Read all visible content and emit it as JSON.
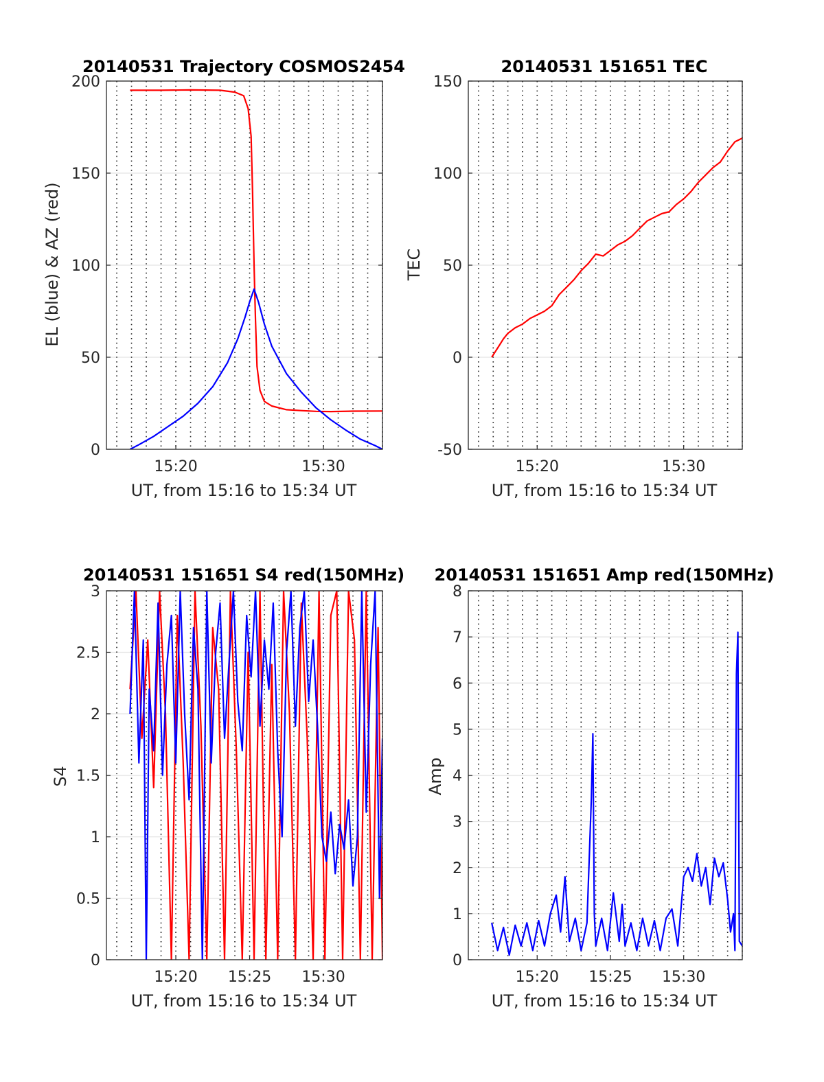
{
  "chart_data": [
    {
      "id": "trajectory",
      "type": "line",
      "title": "20140531 Trajectory COSMOS2454",
      "xlabel": "UT, from 15:16 to 15:34 UT",
      "ylabel": "EL (blue) & AZ (red)",
      "xlim": [
        15.3,
        34.0
      ],
      "ylim": [
        0,
        200
      ],
      "xticks": [
        20,
        30
      ],
      "xtick_labels": [
        "15:20",
        "15:30"
      ],
      "yticks": [
        0,
        50,
        100,
        150,
        200
      ],
      "ytick_labels": [
        "0",
        "50",
        "100",
        "150",
        "200"
      ],
      "grid": "horizontal solid, vertical dotted every minute",
      "series": [
        {
          "color": "#ff0000",
          "x": [
            16.9,
            19.0,
            21.0,
            23.0,
            24.0,
            24.6,
            24.9,
            25.1,
            25.2,
            25.3,
            25.4,
            25.5,
            25.7,
            26.0,
            26.5,
            27.5,
            28.5,
            29.5,
            30.5,
            32.0,
            34.0
          ],
          "y": [
            195,
            195,
            195.2,
            195,
            194,
            192,
            185,
            170,
            140,
            100,
            70,
            45,
            32,
            26,
            23.5,
            21.5,
            21,
            20.6,
            20.5,
            20.7,
            20.8
          ]
        },
        {
          "color": "#0000ff",
          "x": [
            16.9,
            17.5,
            18.5,
            19.5,
            20.5,
            21.5,
            22.5,
            23.5,
            24.2,
            24.7,
            25.0,
            25.3,
            25.6,
            26.0,
            26.5,
            27.5,
            28.5,
            29.5,
            30.5,
            31.5,
            32.5,
            33.5,
            34.0
          ],
          "y": [
            0,
            2.5,
            7,
            12.5,
            18,
            25,
            34,
            47,
            60,
            72,
            80,
            87,
            80,
            68,
            56,
            41,
            31,
            22.5,
            16,
            10.5,
            5.5,
            2,
            0
          ]
        }
      ]
    },
    {
      "id": "tec",
      "type": "line",
      "title": "20140531 151651 TEC",
      "xlabel": "UT, from 15:16 to 15:34 UT",
      "ylabel": "TEC",
      "xlim": [
        15.3,
        34.0
      ],
      "ylim": [
        -50,
        150
      ],
      "xticks": [
        20,
        30
      ],
      "xtick_labels": [
        "15:20",
        "15:30"
      ],
      "yticks": [
        -50,
        0,
        50,
        100,
        150
      ],
      "ytick_labels": [
        "-50",
        "0",
        "50",
        "100",
        "150"
      ],
      "grid": "horizontal solid, vertical dotted every minute",
      "series": [
        {
          "color": "#ff0000",
          "x": [
            16.9,
            17.3,
            17.7,
            18.0,
            18.5,
            19.0,
            19.5,
            20.0,
            20.5,
            21.0,
            21.5,
            22.0,
            22.5,
            23.0,
            23.5,
            24.0,
            24.5,
            25.0,
            25.5,
            26.0,
            26.5,
            27.0,
            27.5,
            28.0,
            28.5,
            29.0,
            29.5,
            30.0,
            30.5,
            31.0,
            31.5,
            32.0,
            32.5,
            33.0,
            33.5,
            34.0
          ],
          "y": [
            0,
            5,
            10,
            13,
            16,
            18,
            21,
            23,
            25,
            28,
            34,
            38,
            42,
            47,
            51,
            56,
            55,
            58,
            61,
            63,
            66,
            70,
            74,
            76,
            78,
            79,
            83,
            86,
            90,
            95,
            99,
            103,
            106,
            112,
            117,
            119
          ]
        }
      ]
    },
    {
      "id": "s4",
      "type": "line",
      "title": "20140531 151651 S4 red(150MHz)",
      "xlabel": "UT, from 15:16 to 15:34 UT",
      "ylabel": "S4",
      "xlim": [
        15.3,
        34.0
      ],
      "ylim": [
        0,
        3
      ],
      "xticks": [
        20,
        25,
        30
      ],
      "xtick_labels": [
        "15:20",
        "15:25",
        "15:30"
      ],
      "yticks": [
        0,
        0.5,
        1,
        1.5,
        2,
        2.5,
        3
      ],
      "ytick_labels": [
        "0",
        "0.5",
        "1",
        "1.5",
        "2",
        "2.5",
        "3"
      ],
      "grid": "horizontal solid, vertical dotted every minute",
      "series": [
        {
          "color": "#ff0000",
          "x": [
            16.9,
            17.3,
            17.7,
            18.1,
            18.5,
            18.9,
            19.3,
            19.7,
            20.1,
            20.5,
            20.9,
            21.3,
            21.7,
            22.1,
            22.5,
            22.9,
            23.3,
            23.7,
            24.1,
            24.5,
            24.9,
            25.3,
            25.7,
            26.1,
            26.5,
            26.9,
            27.3,
            27.7,
            28.1,
            28.5,
            28.9,
            29.3,
            29.7,
            30.1,
            30.5,
            30.9,
            31.3,
            31.7,
            32.1,
            32.5,
            32.9,
            33.3,
            33.7,
            34.0
          ],
          "y": [
            2.2,
            3.0,
            1.8,
            2.6,
            1.4,
            3.0,
            2.0,
            0.0,
            2.8,
            1.6,
            0.0,
            3.0,
            1.9,
            0.0,
            2.7,
            2.2,
            0.0,
            3.0,
            1.7,
            0.0,
            2.5,
            0.0,
            3.0,
            0.0,
            2.4,
            0.0,
            3.0,
            2.0,
            0.0,
            2.9,
            1.8,
            0.0,
            3.0,
            0.0,
            2.8,
            3.0,
            0.0,
            3.0,
            2.6,
            0.0,
            3.0,
            0.0,
            2.7,
            0.0
          ]
        },
        {
          "color": "#0000ff",
          "x": [
            16.9,
            17.2,
            17.5,
            17.8,
            18.0,
            18.2,
            18.5,
            18.8,
            19.1,
            19.4,
            19.7,
            20.0,
            20.3,
            20.6,
            20.9,
            21.2,
            21.5,
            21.8,
            22.1,
            22.4,
            22.7,
            23.0,
            23.3,
            23.6,
            23.9,
            24.2,
            24.5,
            24.8,
            25.1,
            25.4,
            25.7,
            26.0,
            26.3,
            26.6,
            26.9,
            27.2,
            27.5,
            27.8,
            28.1,
            28.4,
            28.7,
            29.0,
            29.3,
            29.6,
            29.9,
            30.2,
            30.5,
            30.8,
            31.1,
            31.4,
            31.7,
            32.0,
            32.3,
            32.6,
            32.9,
            33.2,
            33.5,
            33.8,
            34.0
          ],
          "y": [
            2.0,
            3.0,
            1.6,
            2.6,
            0.0,
            2.2,
            1.7,
            2.9,
            1.5,
            2.4,
            2.8,
            1.6,
            3.0,
            2.0,
            1.3,
            2.7,
            2.2,
            0.0,
            3.0,
            1.6,
            2.5,
            2.9,
            1.8,
            2.4,
            3.0,
            2.1,
            1.7,
            2.8,
            2.3,
            3.0,
            1.9,
            2.6,
            2.2,
            2.9,
            1.7,
            1.0,
            2.5,
            3.0,
            1.9,
            2.7,
            3.0,
            2.1,
            2.6,
            1.9,
            1.0,
            0.8,
            1.2,
            0.7,
            1.1,
            0.9,
            1.3,
            0.6,
            1.0,
            3.0,
            1.2,
            2.4,
            3.0,
            0.5,
            1.8
          ]
        }
      ]
    },
    {
      "id": "amp",
      "type": "line",
      "title": "20140531 151651 Amp red(150MHz)",
      "xlabel": "UT, from 15:16 to 15:34 UT",
      "ylabel": "Amp",
      "xlim": [
        15.3,
        34.0
      ],
      "ylim": [
        0,
        8
      ],
      "xticks": [
        20,
        25,
        30
      ],
      "xtick_labels": [
        "15:20",
        "15:25",
        "15:30"
      ],
      "yticks": [
        0,
        1,
        2,
        3,
        4,
        5,
        6,
        7,
        8
      ],
      "ytick_labels": [
        "0",
        "1",
        "2",
        "3",
        "4",
        "5",
        "6",
        "7",
        "8"
      ],
      "grid": "horizontal solid, vertical dotted every minute",
      "series": [
        {
          "color": "#0000ff",
          "x": [
            16.9,
            17.3,
            17.7,
            18.1,
            18.5,
            18.9,
            19.3,
            19.7,
            20.1,
            20.5,
            20.9,
            21.3,
            21.6,
            21.9,
            22.2,
            22.6,
            23.0,
            23.4,
            23.7,
            23.8,
            23.9,
            24.0,
            24.4,
            24.8,
            25.2,
            25.6,
            25.8,
            26.0,
            26.4,
            26.8,
            27.2,
            27.6,
            28.0,
            28.4,
            28.8,
            29.2,
            29.6,
            30.0,
            30.3,
            30.6,
            30.9,
            31.2,
            31.5,
            31.8,
            32.1,
            32.4,
            32.7,
            33.0,
            33.2,
            33.4,
            33.5,
            33.6,
            33.7,
            33.8,
            34.0
          ],
          "y": [
            0.8,
            0.2,
            0.7,
            0.1,
            0.75,
            0.3,
            0.8,
            0.2,
            0.85,
            0.3,
            1.0,
            1.4,
            0.6,
            1.8,
            0.4,
            0.9,
            0.2,
            0.8,
            3.5,
            4.9,
            1.0,
            0.3,
            0.9,
            0.2,
            1.45,
            0.4,
            1.2,
            0.3,
            0.8,
            0.2,
            0.9,
            0.3,
            0.85,
            0.2,
            0.9,
            1.1,
            0.3,
            1.8,
            2.0,
            1.7,
            2.3,
            1.6,
            2.0,
            1.2,
            2.2,
            1.8,
            2.1,
            1.3,
            0.6,
            1.0,
            0.2,
            6.2,
            7.1,
            0.4,
            0.3
          ]
        }
      ]
    }
  ]
}
